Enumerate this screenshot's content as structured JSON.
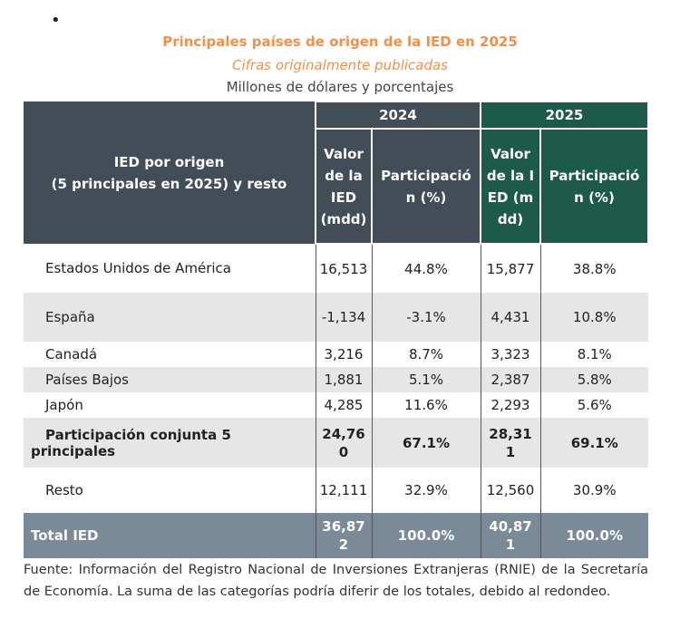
{
  "title": "Principales países de origen de la IED en 2025",
  "subtitle": "Cifras originalmente publicadas",
  "units": "Millones de dólares y porcentajes",
  "colors": {
    "header_dark": "#434d57",
    "header_green": "#1e5a4a",
    "accent_title": "#f0904a",
    "total_row": "#7a8a99",
    "stripe": "#e6e6e6"
  },
  "header": {
    "row_label": "IED por origen\n(5 principales en 2025) y resto",
    "years": [
      "2024",
      "2025"
    ],
    "value_col": "Valor de la IED (mdd)",
    "share_col": "Participación (%)"
  },
  "rows": [
    {
      "name": "Estados Unidos de América",
      "v2024": "16,513",
      "p2024": "44.8%",
      "v2025": "15,877",
      "p2025": "38.8%"
    },
    {
      "name": "España",
      "v2024": "-1,134",
      "p2024": "-3.1%",
      "v2025": "4,431",
      "p2025": "10.8%"
    },
    {
      "name": "Canadá",
      "v2024": "3,216",
      "p2024": "8.7%",
      "v2025": "3,323",
      "p2025": "8.1%"
    },
    {
      "name": "Países Bajos",
      "v2024": "1,881",
      "p2024": "5.1%",
      "v2025": "2,387",
      "p2025": "5.8%"
    },
    {
      "name": "Japón",
      "v2024": "4,285",
      "p2024": "11.6%",
      "v2025": "2,293",
      "p2025": "5.6%"
    },
    {
      "name": "Participación conjunta 5 principales",
      "v2024": "24,760",
      "p2024": "67.1%",
      "v2025": "28,311",
      "p2025": "69.1%"
    },
    {
      "name": "Resto",
      "v2024": "12,111",
      "p2024": "32.9%",
      "v2025": "12,560",
      "p2025": "30.9%"
    },
    {
      "name": "Total IED",
      "v2024": "36,872",
      "p2024": "100.0%",
      "v2025": "40,871",
      "p2025": "100.0%"
    }
  ],
  "footer": "Fuente: Información del Registro Nacional de Inversiones Extranjeras (RNIE) de la Secretaría de Economía. La suma de las categorías podría diferir de los totales, debido al redondeo."
}
